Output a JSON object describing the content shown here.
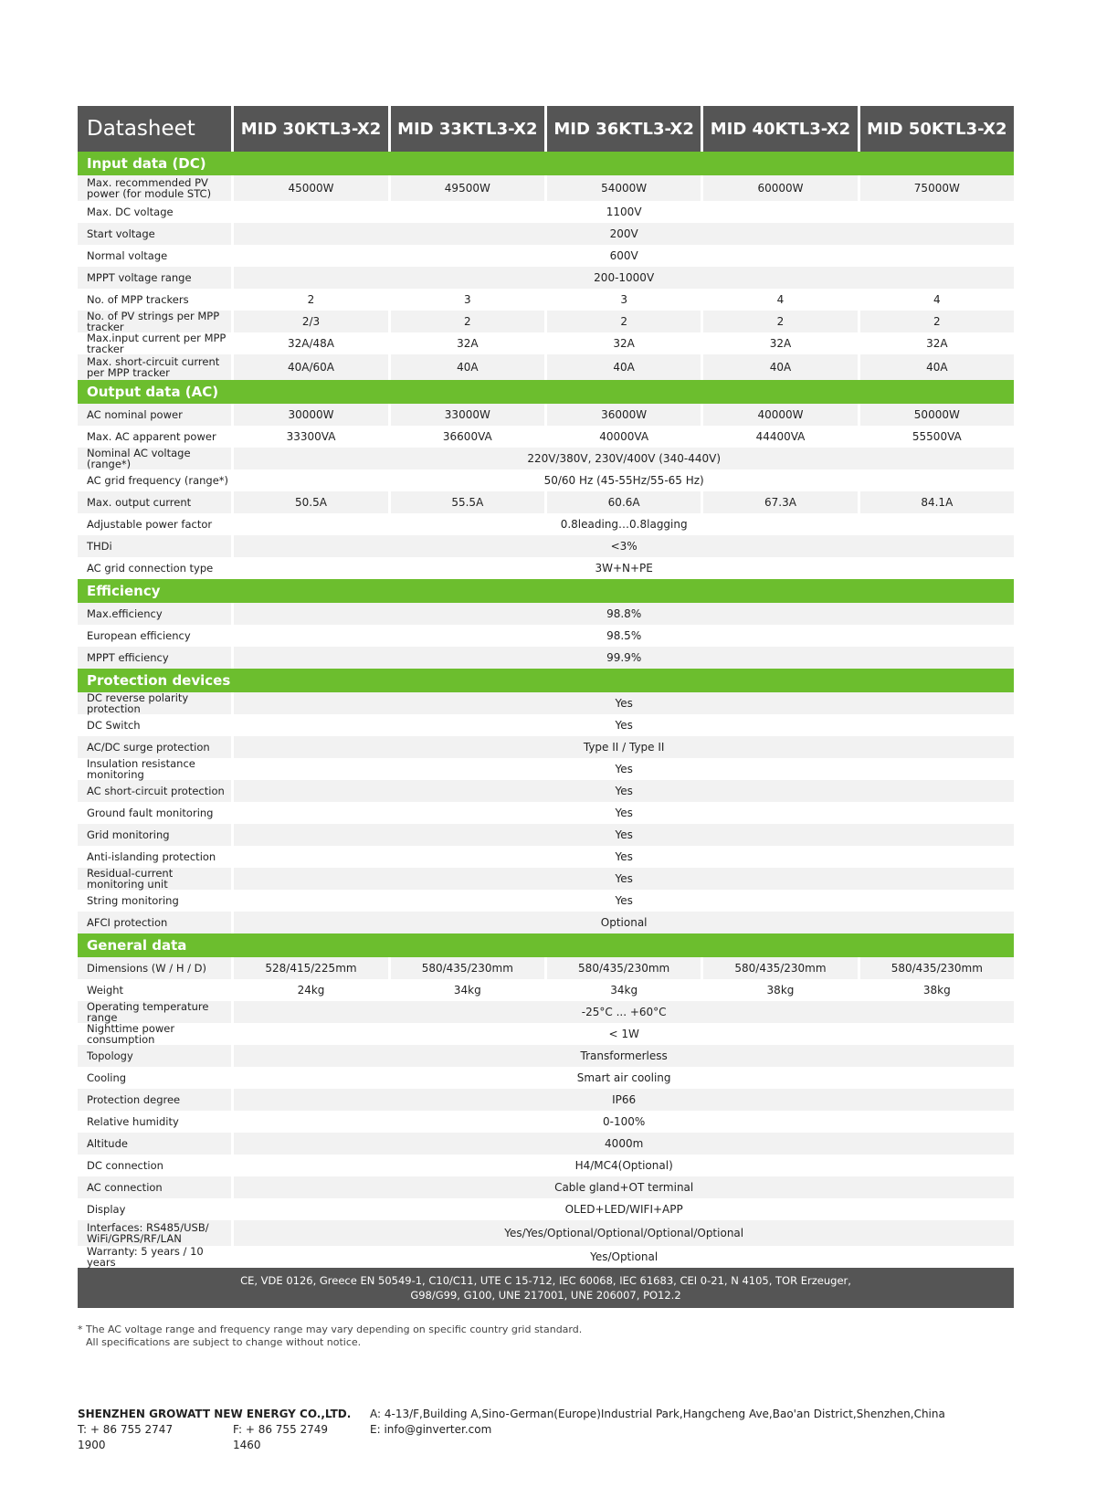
{
  "header": {
    "title": "Datasheet",
    "models": [
      "MID 30KTL3-X2",
      "MID 33KTL3-X2",
      "MID 36KTL3-X2",
      "MID 40KTL3-X2",
      "MID 50KTL3-X2"
    ]
  },
  "sections": [
    {
      "title": "Input data (DC)",
      "rows": [
        {
          "label": "Max. recommended PV power (for module STC)",
          "values": [
            "45000W",
            "49500W",
            "54000W",
            "60000W",
            "75000W"
          ]
        },
        {
          "label": "Max. DC voltage",
          "values": [
            "1100V"
          ]
        },
        {
          "label": "Start voltage",
          "values": [
            "200V"
          ]
        },
        {
          "label": "Normal voltage",
          "values": [
            "600V"
          ]
        },
        {
          "label": "MPPT voltage range",
          "values": [
            "200-1000V"
          ]
        },
        {
          "label": "No. of MPP trackers",
          "values": [
            "2",
            "3",
            "3",
            "4",
            "4"
          ]
        },
        {
          "label": "No. of PV strings per MPP tracker",
          "values": [
            "2/3",
            "2",
            "2",
            "2",
            "2"
          ]
        },
        {
          "label": "Max.input current per MPP tracker",
          "values": [
            "32A/48A",
            "32A",
            "32A",
            "32A",
            "32A"
          ]
        },
        {
          "label": "Max. short-circuit current per MPP tracker",
          "values": [
            "40A/60A",
            "40A",
            "40A",
            "40A",
            "40A"
          ]
        }
      ]
    },
    {
      "title": "Output data (AC)",
      "rows": [
        {
          "label": "AC nominal power",
          "values": [
            "30000W",
            "33000W",
            "36000W",
            "40000W",
            "50000W"
          ]
        },
        {
          "label": "Max. AC apparent power",
          "values": [
            "33300VA",
            "36600VA",
            "40000VA",
            "44400VA",
            "55500VA"
          ]
        },
        {
          "label": "Nominal AC voltage (range*)",
          "values": [
            "220V/380V, 230V/400V  (340-440V)"
          ]
        },
        {
          "label": "AC grid frequency (range*)",
          "values": [
            "50/60 Hz (45-55Hz/55-65 Hz)"
          ]
        },
        {
          "label": "Max. output current",
          "values": [
            "50.5A",
            "55.5A",
            "60.6A",
            "67.3A",
            "84.1A"
          ]
        },
        {
          "label": "Adjustable power factor",
          "values": [
            "0.8leading…0.8lagging"
          ]
        },
        {
          "label": "THDi",
          "values": [
            "<3%"
          ]
        },
        {
          "label": "AC grid connection type",
          "values": [
            "3W+N+PE"
          ]
        }
      ]
    },
    {
      "title": "Efficiency",
      "rows": [
        {
          "label": "Max.efficiency",
          "values": [
            "98.8%"
          ]
        },
        {
          "label": "European efficiency",
          "values": [
            "98.5%"
          ]
        },
        {
          "label": "MPPT efficiency",
          "values": [
            "99.9%"
          ]
        }
      ]
    },
    {
      "title": "Protection devices",
      "rows": [
        {
          "label": "DC reverse polarity protection",
          "values": [
            "Yes"
          ]
        },
        {
          "label": "DC Switch",
          "values": [
            "Yes"
          ]
        },
        {
          "label": "AC/DC surge protection",
          "values": [
            "Type II / Type II"
          ]
        },
        {
          "label": "Insulation resistance monitoring",
          "values": [
            "Yes"
          ]
        },
        {
          "label": "AC short-circuit protection",
          "values": [
            "Yes"
          ]
        },
        {
          "label": "Ground fault monitoring",
          "values": [
            "Yes"
          ]
        },
        {
          "label": "Grid monitoring",
          "values": [
            "Yes"
          ]
        },
        {
          "label": "Anti-islanding protection",
          "values": [
            "Yes"
          ]
        },
        {
          "label": "Residual-current monitoring unit",
          "values": [
            "Yes"
          ]
        },
        {
          "label": "String monitoring",
          "values": [
            "Yes"
          ]
        },
        {
          "label": "AFCI protection",
          "values": [
            "Optional"
          ]
        }
      ]
    },
    {
      "title": "General data",
      "rows": [
        {
          "label": "Dimensions (W / H / D)",
          "values": [
            "528/415/225mm",
            "580/435/230mm",
            "580/435/230mm",
            "580/435/230mm",
            "580/435/230mm"
          ]
        },
        {
          "label": "Weight",
          "values": [
            "24kg",
            "34kg",
            "34kg",
            "38kg",
            "38kg"
          ]
        },
        {
          "label": "Operating temperature range",
          "values": [
            "-25°C ... +60°C"
          ]
        },
        {
          "label": "Nighttime power consumption",
          "values": [
            "< 1W"
          ]
        },
        {
          "label": "Topology",
          "values": [
            "Transformerless"
          ]
        },
        {
          "label": "Cooling",
          "values": [
            "Smart air cooling"
          ]
        },
        {
          "label": "Protection degree",
          "values": [
            "IP66"
          ]
        },
        {
          "label": "Relative humidity",
          "values": [
            "0-100%"
          ]
        },
        {
          "label": "Altitude",
          "values": [
            "4000m"
          ]
        },
        {
          "label": "DC connection",
          "values": [
            "H4/MC4(Optional)"
          ]
        },
        {
          "label": "AC connection",
          "values": [
            "Cable gland+OT terminal"
          ]
        },
        {
          "label": "Display",
          "values": [
            "OLED+LED/WIFI+APP"
          ]
        },
        {
          "label": "Interfaces: RS485/USB/ WiFi/GPRS/RF/LAN",
          "values": [
            "Yes/Yes/Optional/Optional/Optional/Optional"
          ]
        },
        {
          "label": "Warranty: 5 years / 10 years",
          "values": [
            "Yes/Optional"
          ]
        }
      ]
    }
  ],
  "certifications": "CE, VDE 0126, Greece EN 50549-1, C10/C11, UTE C 15-712, IEC 60068, IEC 61683, CEI 0-21, N 4105, TOR Erzeuger, G98/G99, G100, UNE 217001, UNE 206007, PO12.2",
  "notes": [
    "* The AC voltage range and frequency range may vary depending on specific country grid standard.",
    "All specifications are subject to change without notice."
  ],
  "footer": {
    "company": "SHENZHEN GROWATT NEW ENERGY CO.,LTD.",
    "phone": "T:  + 86 755 2747 1900",
    "fax": "F:  + 86 755 2749 1460",
    "address": "A:  4-13/F,Building A,Sino-German(Europe)Industrial Park,Hangcheng Ave,Bao'an District,Shenzhen,China",
    "email": "E:  info@ginverter.com"
  }
}
